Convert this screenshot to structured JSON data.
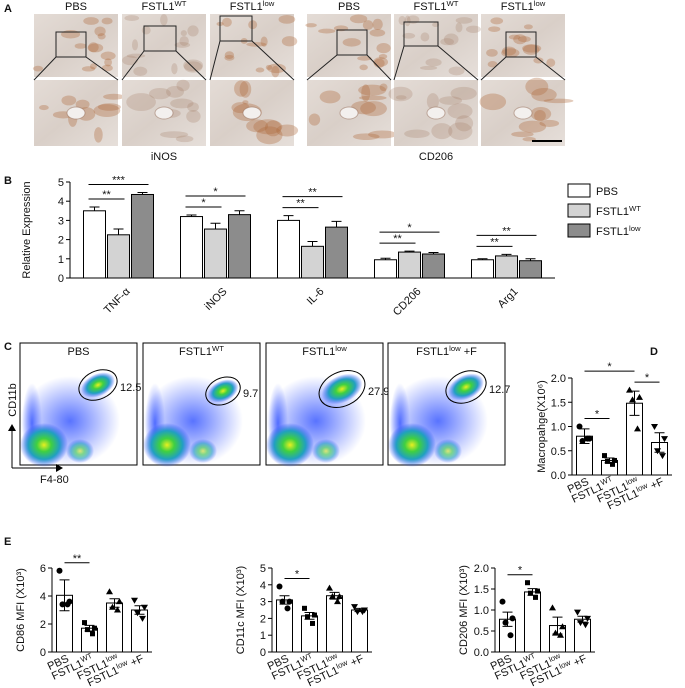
{
  "panels": [
    "A",
    "B",
    "C",
    "D",
    "E"
  ],
  "panel_a": {
    "headers": [
      {
        "base": "PBS"
      },
      {
        "base": "FSTL1",
        "sup": "WT"
      },
      {
        "base": "FSTL1",
        "sup": "low"
      },
      {
        "base": "PBS"
      },
      {
        "base": "FSTL1",
        "sup": "WT"
      },
      {
        "base": "FSTL1",
        "sup": "low"
      }
    ],
    "captions": [
      "iNOS",
      "CD206"
    ]
  },
  "panel_c": {
    "ylabel": "CD11b",
    "xlabel": "F4-80",
    "plots": [
      {
        "title": {
          "base": "PBS"
        },
        "gate": 12.5
      },
      {
        "title": {
          "base": "FSTL1",
          "sup": "WT"
        },
        "gate": 9.7
      },
      {
        "title": {
          "base": "FSTL1",
          "sup": "low"
        },
        "gate": 27.9
      },
      {
        "title": {
          "base": "FSTL1",
          "sup": "low",
          "tail": " +F"
        },
        "gate": 12.7
      }
    ]
  },
  "chart_data": [
    {
      "type": "grouped-bar",
      "ylabel": "Relative Expression",
      "categories": [
        "TNF-α",
        "iNOS",
        "IL-6",
        "CD206",
        "Arg1"
      ],
      "series": [
        {
          "name": {
            "base": "PBS"
          },
          "color": "#ffffff",
          "values": [
            3.5,
            3.2,
            3.0,
            0.95,
            0.95
          ],
          "errors": [
            0.2,
            0.08,
            0.25,
            0.08,
            0.05
          ]
        },
        {
          "name": {
            "base": "FSTL1",
            "sup": "WT"
          },
          "color": "#d3d3d3",
          "values": [
            2.25,
            2.55,
            1.65,
            1.35,
            1.15
          ],
          "errors": [
            0.3,
            0.3,
            0.25,
            0.05,
            0.08
          ]
        },
        {
          "name": {
            "base": "FSTL1",
            "sup": "low"
          },
          "color": "#8c8c8c",
          "values": [
            4.35,
            3.3,
            2.65,
            1.25,
            0.9
          ],
          "errors": [
            0.1,
            0.2,
            0.3,
            0.08,
            0.1
          ]
        }
      ],
      "ylim": [
        0,
        5
      ],
      "yticks": [
        0,
        1,
        2,
        3,
        4,
        5
      ],
      "legend": "right",
      "significance": [
        {
          "category": 0,
          "pair": [
            0,
            1
          ],
          "label": "**"
        },
        {
          "category": 0,
          "pair": [
            0,
            2
          ],
          "label": "***"
        },
        {
          "category": 1,
          "pair": [
            0,
            1
          ],
          "label": "*"
        },
        {
          "category": 1,
          "pair": [
            0,
            2
          ],
          "label": "*"
        },
        {
          "category": 2,
          "pair": [
            0,
            1
          ],
          "label": "**"
        },
        {
          "category": 2,
          "pair": [
            0,
            2
          ],
          "label": "**"
        },
        {
          "category": 3,
          "pair": [
            0,
            1
          ],
          "label": "**"
        },
        {
          "category": 3,
          "pair": [
            0,
            2
          ],
          "label": "*"
        },
        {
          "category": 4,
          "pair": [
            0,
            1
          ],
          "label": "**"
        },
        {
          "category": 4,
          "pair": [
            0,
            2
          ],
          "label": "**"
        }
      ]
    },
    {
      "type": "scatter-bar",
      "ylabel": "Macropahge(X10⁶)",
      "categories": [
        {
          "base": "PBS"
        },
        {
          "base": "FSTL1",
          "sup": "WT"
        },
        {
          "base": "FSTL1",
          "sup": "low"
        },
        {
          "base": "FSTL1",
          "sup": "low",
          "tail": " +F"
        }
      ],
      "means": [
        0.8,
        0.3,
        1.48,
        0.67
      ],
      "errors": [
        0.15,
        0.05,
        0.25,
        0.2
      ],
      "points": [
        [
          1.0,
          0.75,
          0.7,
          0.75
        ],
        [
          0.4,
          0.3,
          0.28,
          0.22
        ],
        [
          1.75,
          1.6,
          1.55,
          0.95
        ],
        [
          1.0,
          0.75,
          0.5,
          0.4
        ]
      ],
      "markers": [
        "circle",
        "square",
        "triangle",
        "triangle-down"
      ],
      "ylim": [
        0,
        2
      ],
      "yticks": [
        {
          "value": 0,
          "label": "0.0"
        },
        0.5,
        {
          "value": 1,
          "label": "1.0"
        },
        1.5,
        {
          "value": 2,
          "label": "2.0"
        }
      ],
      "significance": [
        {
          "pair": [
            0,
            1
          ],
          "label": "*"
        },
        {
          "pair": [
            2,
            3
          ],
          "label": "*"
        },
        {
          "pair": [
            0,
            2
          ],
          "label": "*"
        }
      ]
    },
    {
      "type": "scatter-bar",
      "ylabel": "CD86 MFI (X10³)",
      "categories": [
        {
          "base": "PBS"
        },
        {
          "base": "FSTL1",
          "sup": "WT"
        },
        {
          "base": "FSTL1",
          "sup": "low"
        },
        {
          "base": "FSTL1",
          "sup": "low",
          "tail": " +F"
        }
      ],
      "means": [
        4.05,
        1.7,
        3.5,
        3.0
      ],
      "errors": [
        1.1,
        0.2,
        0.3,
        0.3
      ],
      "points": [
        [
          5.8,
          3.6,
          3.4,
          3.4
        ],
        [
          2.1,
          1.7,
          1.6,
          1.3
        ],
        [
          4.3,
          3.6,
          3.2,
          3.0
        ],
        [
          3.7,
          3.2,
          2.8,
          2.4
        ]
      ],
      "markers": [
        "circle",
        "square",
        "triangle",
        "triangle-down"
      ],
      "ylim": [
        0,
        6
      ],
      "yticks": [
        0,
        2,
        4,
        6
      ],
      "significance": [
        {
          "pair": [
            0,
            1
          ],
          "label": "**"
        }
      ]
    },
    {
      "type": "scatter-bar",
      "ylabel": "CD11c MFI (X10³)",
      "categories": [
        {
          "base": "PBS"
        },
        {
          "base": "FSTL1",
          "sup": "WT"
        },
        {
          "base": "FSTL1",
          "sup": "low"
        },
        {
          "base": "FSTL1",
          "sup": "low",
          "tail": " +F"
        }
      ],
      "means": [
        3.1,
        2.15,
        3.35,
        2.5
      ],
      "errors": [
        0.25,
        0.2,
        0.2,
        0.1
      ],
      "points": [
        [
          3.9,
          3.0,
          3.0,
          2.6
        ],
        [
          2.6,
          2.2,
          2.1,
          1.7
        ],
        [
          3.8,
          3.3,
          3.3,
          3.0
        ],
        [
          2.7,
          2.5,
          2.4,
          2.4
        ]
      ],
      "markers": [
        "circle",
        "square",
        "triangle",
        "triangle-down"
      ],
      "ylim": [
        0,
        5
      ],
      "yticks": [
        0,
        1,
        2,
        3,
        4,
        5
      ],
      "significance": [
        {
          "pair": [
            0,
            1
          ],
          "label": "*"
        }
      ]
    },
    {
      "type": "scatter-bar",
      "ylabel": "CD206 MFI (X10³)",
      "categories": [
        {
          "base": "PBS"
        },
        {
          "base": "FSTL1",
          "sup": "WT"
        },
        {
          "base": "FSTL1",
          "sup": "low"
        },
        {
          "base": "FSTL1",
          "sup": "low",
          "tail": " +F"
        }
      ],
      "means": [
        0.78,
        1.43,
        0.63,
        0.78
      ],
      "errors": [
        0.17,
        0.08,
        0.2,
        0.07
      ],
      "points": [
        [
          1.2,
          0.8,
          0.7,
          0.4
        ],
        [
          1.65,
          1.45,
          1.4,
          1.3
        ],
        [
          1.05,
          0.6,
          0.45,
          0.4
        ],
        [
          0.95,
          0.8,
          0.7,
          0.65
        ]
      ],
      "markers": [
        "circle",
        "square",
        "triangle",
        "triangle-down"
      ],
      "ylim": [
        0,
        2
      ],
      "yticks": [
        {
          "value": 0,
          "label": "0.0"
        },
        0.5,
        {
          "value": 1,
          "label": "1.0"
        },
        1.5,
        {
          "value": 2,
          "label": "2.0"
        }
      ],
      "significance": [
        {
          "pair": [
            0,
            1
          ],
          "label": "*"
        }
      ]
    }
  ]
}
